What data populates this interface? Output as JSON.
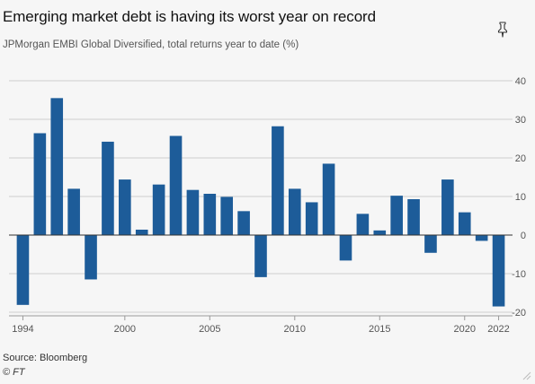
{
  "header": {
    "title": "Emerging market debt is having its worst year on record",
    "subtitle": "JPMorgan EMBI Global Diversified, total returns year to date (%)"
  },
  "footer": {
    "source": "Source: Bloomberg",
    "credit": "© FT"
  },
  "icons": {
    "pin": "pin-icon",
    "resize": "resize-handle-icon"
  },
  "colors": {
    "bar": "#1d5c99",
    "grid": "#cfcfcf",
    "zero_line": "#333333",
    "tick_text": "#555555"
  },
  "chart_data": {
    "type": "bar",
    "x": [
      1994,
      1995,
      1996,
      1997,
      1998,
      1999,
      2000,
      2001,
      2002,
      2003,
      2004,
      2005,
      2006,
      2007,
      2008,
      2009,
      2010,
      2011,
      2012,
      2013,
      2014,
      2015,
      2016,
      2017,
      2018,
      2019,
      2020,
      2021,
      2022
    ],
    "values": [
      -18.1,
      26.4,
      35.5,
      12.0,
      -11.5,
      24.2,
      14.4,
      1.4,
      13.1,
      25.7,
      11.7,
      10.7,
      9.9,
      6.2,
      -10.9,
      28.2,
      12.0,
      8.5,
      18.5,
      -6.6,
      5.5,
      1.2,
      10.2,
      9.3,
      -4.6,
      14.4,
      5.9,
      -1.5,
      -18.5
    ],
    "xticks": [
      "1994",
      "2000",
      "2005",
      "2010",
      "2015",
      "2020",
      "2022"
    ],
    "xtick_values": [
      1994,
      2000,
      2005,
      2010,
      2015,
      2020,
      2022
    ],
    "yticks": [
      "40",
      "30",
      "20",
      "10",
      "0",
      "-10",
      "-20"
    ],
    "ytick_values": [
      40,
      30,
      20,
      10,
      0,
      -10,
      -20
    ],
    "ylim": [
      -20,
      40
    ],
    "xlabel": "",
    "ylabel": "",
    "grid": true,
    "y_axis_side": "right"
  }
}
